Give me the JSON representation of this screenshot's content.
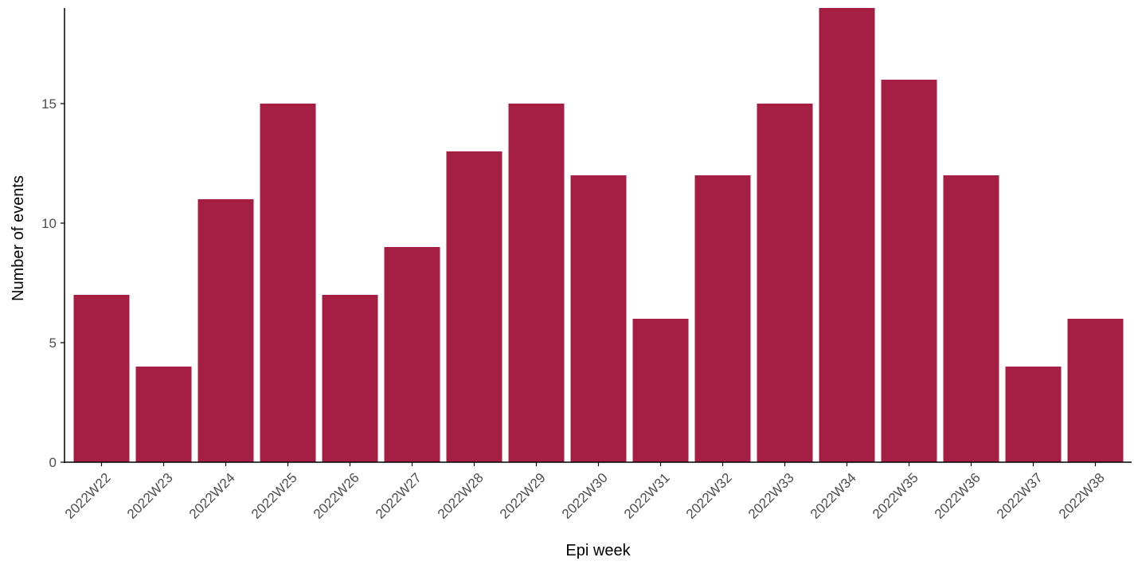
{
  "chart_data": {
    "type": "bar",
    "title": "",
    "xlabel": "Epi week",
    "ylabel": "Number of events",
    "categories": [
      "2022W22",
      "2022W23",
      "2022W24",
      "2022W25",
      "2022W26",
      "2022W27",
      "2022W28",
      "2022W29",
      "2022W30",
      "2022W31",
      "2022W32",
      "2022W33",
      "2022W34",
      "2022W35",
      "2022W36",
      "2022W37",
      "2022W38"
    ],
    "values": [
      7,
      4,
      11,
      15,
      7,
      9,
      13,
      15,
      12,
      6,
      12,
      15,
      19,
      16,
      12,
      4,
      6
    ],
    "ylim": [
      0,
      19
    ],
    "yticks": [
      0,
      5,
      10,
      15
    ],
    "grid": false,
    "legend": "none",
    "colors": {
      "bar": "#A51F44",
      "axis": "#000000",
      "tick_text": "#4d4d4d"
    }
  }
}
